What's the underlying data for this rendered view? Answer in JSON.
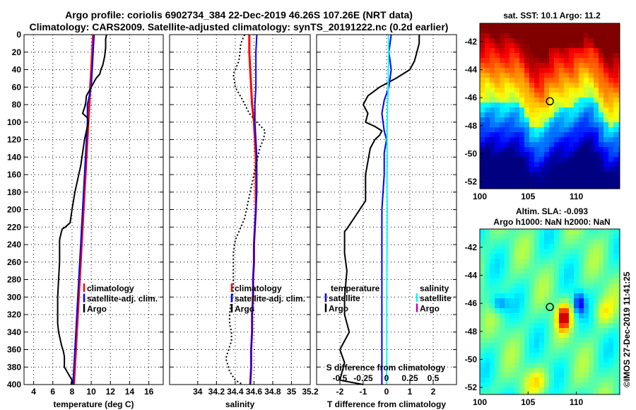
{
  "header": {
    "line1": "Argo profile: coriolis 6902734_384 22-Dec-2019 46.26S 107.26E (NRT data)",
    "line2": "Climatology: CARS2009. Satellite-adjusted climatology: synTS_20191222.nc (0.2d earlier)"
  },
  "watermark": "©IMOS 27-Dec-2019 11:41:25",
  "colors": {
    "climatology": "#ff0000",
    "satellite": "#0000ff",
    "argo": "#000000",
    "sal_satellite": "#00ffff",
    "sal_argo": "#c000c0"
  },
  "chart_data": [
    {
      "id": "temperature",
      "type": "line",
      "xlabel": "temperature (deg C)",
      "xlim": [
        3,
        17.5
      ],
      "xticks": [
        4,
        6,
        8,
        10,
        12,
        14,
        16
      ],
      "xtick_labels": [
        "4",
        "6",
        "8",
        "10",
        "12",
        "14",
        "16"
      ],
      "ylim": [
        0,
        400
      ],
      "yticks": [
        0,
        20,
        40,
        60,
        80,
        100,
        120,
        140,
        160,
        180,
        200,
        220,
        240,
        260,
        280,
        300,
        320,
        340,
        360,
        380,
        400
      ],
      "ytick_labels": [
        "0",
        "20",
        "40",
        "60",
        "80",
        "100",
        "120",
        "140",
        "160",
        "180",
        "200",
        "220",
        "240",
        "260",
        "280",
        "300",
        "320",
        "340",
        "360",
        "380",
        "400"
      ],
      "series": [
        {
          "name": "climatology",
          "color": "#ff0000",
          "width": 3,
          "x": [
            10.2,
            10.1,
            10.0,
            9.9,
            9.8,
            9.7,
            9.6,
            9.5,
            9.4,
            9.3,
            9.2,
            9.1,
            9.0,
            8.9,
            8.8,
            8.7,
            8.6,
            8.5,
            8.4,
            8.3,
            8.2
          ],
          "y": [
            0,
            20,
            40,
            60,
            80,
            100,
            120,
            140,
            160,
            180,
            200,
            220,
            240,
            260,
            280,
            300,
            320,
            340,
            360,
            380,
            400
          ]
        },
        {
          "name": "satellite-adj. clim.",
          "color": "#0000ff",
          "width": 2,
          "x": [
            10.3,
            10.2,
            10.1,
            10.0,
            9.6,
            9.6,
            9.5,
            9.4,
            9.3,
            9.2,
            9.1,
            9.0,
            8.9,
            8.8,
            8.7,
            8.6,
            8.5,
            8.4,
            8.3,
            8.2,
            8.1
          ],
          "y": [
            0,
            20,
            40,
            60,
            80,
            100,
            120,
            140,
            160,
            180,
            200,
            220,
            240,
            260,
            280,
            300,
            320,
            340,
            360,
            380,
            400
          ]
        },
        {
          "name": "Argo",
          "color": "#000000",
          "width": 2,
          "x": [
            11.6,
            11.5,
            11.5,
            11.4,
            11.2,
            11.0,
            10.9,
            10.5,
            10.0,
            9.5,
            9.4,
            9.1,
            9.6,
            9.7,
            9.6,
            9.5,
            9.3,
            9.1,
            8.9,
            8.6,
            8.3,
            8.0,
            7.8,
            7.3,
            7.0,
            6.9,
            6.8,
            6.75,
            6.7,
            6.7,
            6.7,
            6.6,
            6.5,
            6.5,
            6.5,
            6.6,
            6.9,
            7.1,
            7.2,
            7.2,
            7.2,
            8.0,
            7.9
          ],
          "y": [
            0,
            5,
            15,
            25,
            35,
            40,
            45,
            50,
            60,
            70,
            80,
            90,
            95,
            100,
            105,
            110,
            120,
            135,
            150,
            165,
            180,
            200,
            215,
            220,
            222,
            225,
            230,
            232,
            235,
            245,
            260,
            280,
            300,
            320,
            330,
            340,
            355,
            362,
            368,
            375,
            380,
            395,
            400
          ]
        }
      ],
      "legend": [
        {
          "label": "climatology",
          "color": "#ff0000"
        },
        {
          "label": "satellite-adj. clim.",
          "color": "#0000ff"
        },
        {
          "label": "Argo",
          "color": "#000000"
        }
      ]
    },
    {
      "id": "salinity",
      "type": "line",
      "xlabel": "salinity",
      "xlim": [
        33.7,
        35.2
      ],
      "xticks": [
        34,
        34.2,
        34.4,
        34.6,
        34.8,
        35,
        35.2
      ],
      "xtick_labels": [
        "34",
        "34.2",
        "34.4",
        "34.6",
        "34.8",
        "35",
        "35.2"
      ],
      "ylim": [
        0,
        400
      ],
      "series": [
        {
          "name": "climatology",
          "color": "#ff0000",
          "width": 3,
          "x": [
            34.55,
            34.55,
            34.56,
            34.57,
            34.58,
            34.6,
            34.61,
            34.62,
            34.62,
            34.62,
            34.62,
            34.61,
            34.6,
            34.6,
            34.59,
            34.59,
            34.58,
            34.58,
            34.57,
            34.57,
            34.56
          ],
          "y": [
            0,
            20,
            40,
            60,
            80,
            100,
            120,
            140,
            160,
            180,
            200,
            220,
            240,
            260,
            280,
            300,
            320,
            340,
            360,
            380,
            400
          ]
        },
        {
          "name": "satellite-adj. clim.",
          "color": "#0000ff",
          "width": 2,
          "x": [
            34.63,
            34.62,
            34.62,
            34.62,
            34.61,
            34.61,
            34.62,
            34.63,
            34.63,
            34.63,
            34.62,
            34.61,
            34.6,
            34.6,
            34.59,
            34.59,
            34.58,
            34.58,
            34.57,
            34.57,
            34.56
          ],
          "y": [
            0,
            20,
            40,
            60,
            80,
            100,
            120,
            140,
            160,
            180,
            200,
            220,
            240,
            260,
            280,
            300,
            320,
            340,
            360,
            380,
            400
          ]
        },
        {
          "name": "Argo",
          "color": "#000000",
          "width": 2,
          "dash": "2,3",
          "x": [
            34.5,
            34.46,
            34.44,
            34.38,
            34.4,
            34.48,
            34.55,
            34.63,
            34.72,
            34.7,
            34.66,
            34.64,
            34.6,
            34.5,
            34.4,
            34.38,
            34.38,
            34.38,
            34.37,
            34.35,
            34.34,
            34.34,
            34.36,
            34.36,
            34.33,
            34.3,
            34.34,
            34.4,
            34.48
          ],
          "y": [
            0,
            10,
            30,
            45,
            60,
            75,
            90,
            100,
            110,
            120,
            130,
            140,
            160,
            210,
            235,
            250,
            270,
            290,
            300,
            310,
            320,
            330,
            340,
            350,
            360,
            370,
            385,
            395,
            400
          ]
        }
      ],
      "legend": [
        {
          "label": "climatology",
          "color": "#ff0000"
        },
        {
          "label": "satellite-adj. clim.",
          "color": "#0000ff"
        },
        {
          "label": "Argo",
          "color": "#000000"
        }
      ]
    },
    {
      "id": "tdiff",
      "type": "line",
      "xlabel": "T difference from climatology",
      "xlim": [
        -3,
        3
      ],
      "xticks": [
        -2,
        -1,
        0,
        1,
        2
      ],
      "xtick_labels": [
        "-2",
        "-1",
        "0",
        "1",
        "2"
      ],
      "secondary_axis": {
        "label": "S difference from climatology",
        "xlim": [
          -0.75,
          0.75
        ],
        "ticks": [
          -0.5,
          -0.25,
          0,
          0.25,
          0.5
        ],
        "tick_labels": [
          "-0.5",
          "-0.25",
          "0",
          "0.25",
          "0.5"
        ]
      },
      "ylim": [
        0,
        400
      ],
      "series": [
        {
          "name": "temperature Argo",
          "color": "#000000",
          "width": 2,
          "x": [
            1.4,
            1.4,
            1.3,
            1.2,
            1.0,
            0.4,
            -0.3,
            -0.8,
            -1.0,
            -0.8,
            -0.9,
            -0.5,
            -0.2,
            -0.3,
            -0.5,
            -0.7,
            -0.9,
            -0.9,
            -1.4,
            -1.7,
            -1.8,
            -1.8,
            -1.8,
            -1.7,
            -1.8,
            -1.8,
            -1.6,
            -2.0,
            -1.8,
            -1.9,
            -2.0,
            -1.0
          ],
          "y": [
            0,
            10,
            20,
            30,
            40,
            50,
            60,
            70,
            80,
            90,
            100,
            105,
            110,
            115,
            120,
            130,
            160,
            190,
            210,
            222,
            225,
            235,
            250,
            270,
            300,
            320,
            340,
            360,
            375,
            385,
            395,
            400
          ]
        },
        {
          "name": "temperature satellite",
          "color": "#0000ff",
          "width": 2,
          "x": [
            0.2,
            0.1,
            0.2,
            0.1,
            -0.1,
            -0.2,
            -0.1,
            0.0,
            -0.1,
            -0.1,
            -0.2,
            -0.2,
            -0.2,
            -0.2
          ],
          "y": [
            0,
            20,
            40,
            60,
            75,
            90,
            110,
            120,
            135,
            160,
            200,
            260,
            330,
            400
          ]
        },
        {
          "name": "salinity satellite",
          "color": "#00ffff",
          "width": 2,
          "x": [
            0.08,
            0.09,
            0.08,
            0.07,
            0.05,
            0.03,
            0.02,
            0.03,
            0.02,
            0.02,
            0.03,
            0.02,
            0.01,
            0.01,
            0.0
          ],
          "y": [
            0,
            20,
            40,
            60,
            80,
            100,
            120,
            140,
            160,
            180,
            200,
            240,
            300,
            360,
            400
          ]
        }
      ],
      "legend_left": {
        "title": "temperature",
        "items": [
          {
            "label": "satellite",
            "color": "#0000ff"
          },
          {
            "label": "Argo",
            "color": "#000000"
          }
        ]
      },
      "legend_right": {
        "title": "salinity",
        "items": [
          {
            "label": "satellite",
            "color": "#00ffff"
          },
          {
            "label": "Argo",
            "color": "#c000c0"
          }
        ]
      }
    },
    {
      "id": "sst_map",
      "type": "heatmap",
      "title": "sat. SST: 10.1 Argo: 11.2",
      "xlim": [
        100,
        114.5
      ],
      "ylim": [
        -52.5,
        -40.7
      ],
      "xticks": [
        100,
        105,
        110
      ],
      "xtick_labels": [
        "100",
        "105",
        "110"
      ],
      "yticks": [
        -42,
        -44,
        -46,
        -48,
        -50,
        -52
      ],
      "ytick_labels": [
        "-42",
        "-44",
        "-46",
        "-48",
        "-50",
        "-52"
      ],
      "marker": {
        "lon": 107.26,
        "lat": -46.26
      }
    },
    {
      "id": "sla_map",
      "type": "heatmap",
      "title": "Altim. SLA: -0.093",
      "subtitle": "Argo h1000: NaN h2000: NaN",
      "xlim": [
        100,
        114.5
      ],
      "ylim": [
        -52.5,
        -40.7
      ],
      "xticks": [
        100,
        105,
        110
      ],
      "xtick_labels": [
        "100",
        "105",
        "110"
      ],
      "yticks": [
        -42,
        -44,
        -46,
        -48,
        -50,
        -52
      ],
      "ytick_labels": [
        "-42",
        "-44",
        "-46",
        "-48",
        "-50",
        "-52"
      ],
      "marker": {
        "lon": 107.26,
        "lat": -46.26
      }
    }
  ]
}
